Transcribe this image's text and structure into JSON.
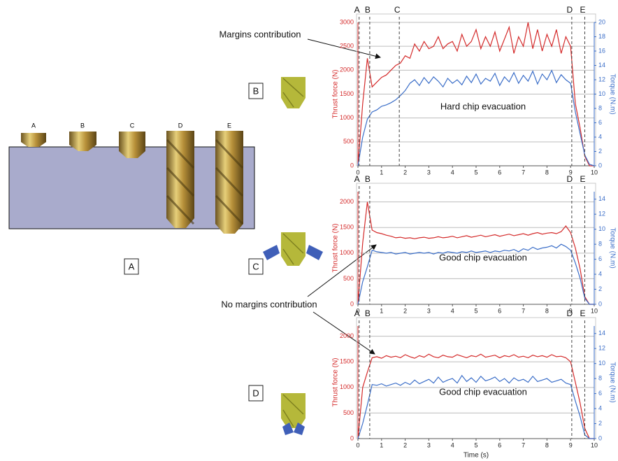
{
  "chart_data": [
    {
      "type": "line",
      "ylabel": "Thrust force (N)",
      "y2label": "Torque (N.m)",
      "annotation": "Hard chip evacuation",
      "xlim": [
        0,
        10
      ],
      "xticks": [
        0,
        1,
        2,
        3,
        4,
        5,
        6,
        7,
        8,
        9,
        10
      ],
      "ylim": [
        0,
        3000
      ],
      "yticks": [
        0,
        500,
        1000,
        1500,
        2000,
        2500,
        3000
      ],
      "y2lim": [
        0,
        20
      ],
      "y2ticks": [
        0,
        2,
        4,
        6,
        8,
        10,
        12,
        14,
        16,
        18,
        20
      ],
      "grid": true,
      "markers": [
        {
          "label": "A",
          "x": 0.05
        },
        {
          "label": "B",
          "x": 0.5
        },
        {
          "label": "C",
          "x": 1.75
        },
        {
          "label": "D",
          "x": 9.05
        },
        {
          "label": "E",
          "x": 9.6
        }
      ],
      "x": [
        0,
        0.2,
        0.4,
        0.6,
        0.8,
        1,
        1.2,
        1.4,
        1.6,
        1.8,
        2,
        2.2,
        2.4,
        2.6,
        2.8,
        3,
        3.2,
        3.4,
        3.6,
        3.8,
        4,
        4.2,
        4.4,
        4.6,
        4.8,
        5,
        5.2,
        5.4,
        5.6,
        5.8,
        6,
        6.2,
        6.4,
        6.6,
        6.8,
        7,
        7.2,
        7.4,
        7.6,
        7.8,
        8,
        8.2,
        8.4,
        8.6,
        8.8,
        9,
        9.2,
        9.4,
        9.6,
        9.8,
        10
      ],
      "series": [
        {
          "color": "#d42a2a",
          "values": [
            0,
            1300,
            2250,
            1650,
            1750,
            1850,
            1900,
            2000,
            2100,
            2150,
            2300,
            2250,
            2550,
            2400,
            2600,
            2450,
            2500,
            2700,
            2450,
            2550,
            2600,
            2400,
            2750,
            2500,
            2600,
            2850,
            2450,
            2700,
            2500,
            2800,
            2400,
            2650,
            2900,
            2350,
            2700,
            2500,
            3000,
            2450,
            2850,
            2400,
            2750,
            2500,
            2850,
            2350,
            2700,
            2500,
            1300,
            800,
            200,
            0,
            0
          ]
        },
        {
          "color": "#3b6ec8",
          "axis": "y2",
          "values": [
            0,
            4,
            6.5,
            7.5,
            7.8,
            8.3,
            8.5,
            8.8,
            9.2,
            9.8,
            10.5,
            11.5,
            12,
            11.2,
            12.3,
            11.5,
            12.4,
            11.8,
            11,
            12.2,
            11.5,
            12,
            11.3,
            12.5,
            11.6,
            12.8,
            11.4,
            12.2,
            11.8,
            12.9,
            11.2,
            12.4,
            11.7,
            13,
            11.5,
            12.6,
            11.8,
            13.2,
            11.4,
            12.8,
            12,
            13.3,
            11.6,
            12.7,
            12,
            11.5,
            7.5,
            4.5,
            1.5,
            0.2,
            0
          ]
        }
      ]
    },
    {
      "type": "line",
      "ylabel": "Thrust force (N)",
      "y2label": "Torque (N.m)",
      "annotation": "Good chip evacuation",
      "xlim": [
        0,
        10
      ],
      "xticks": [
        0,
        1,
        2,
        3,
        4,
        5,
        6,
        7,
        8,
        9,
        10
      ],
      "ylim": [
        0,
        2200
      ],
      "yticks": [
        0,
        500,
        1000,
        1500,
        2000
      ],
      "y2lim": [
        0,
        15
      ],
      "y2ticks": [
        0,
        2,
        4,
        6,
        8,
        10,
        12,
        14
      ],
      "grid": true,
      "markers": [
        {
          "label": "A",
          "x": 0.05
        },
        {
          "label": "B",
          "x": 0.5
        },
        {
          "label": "D",
          "x": 9.05
        },
        {
          "label": "E",
          "x": 9.6
        }
      ],
      "x": [
        0,
        0.2,
        0.4,
        0.6,
        0.8,
        1,
        1.2,
        1.4,
        1.6,
        1.8,
        2,
        2.2,
        2.4,
        2.6,
        2.8,
        3,
        3.2,
        3.4,
        3.6,
        3.8,
        4,
        4.2,
        4.4,
        4.6,
        4.8,
        5,
        5.2,
        5.4,
        5.6,
        5.8,
        6,
        6.2,
        6.4,
        6.6,
        6.8,
        7,
        7.2,
        7.4,
        7.6,
        7.8,
        8,
        8.2,
        8.4,
        8.6,
        8.8,
        9,
        9.2,
        9.4,
        9.6,
        9.8,
        10
      ],
      "series": [
        {
          "color": "#d42a2a",
          "values": [
            0,
            1200,
            2000,
            1450,
            1400,
            1380,
            1350,
            1330,
            1300,
            1310,
            1290,
            1300,
            1280,
            1300,
            1310,
            1290,
            1300,
            1320,
            1300,
            1310,
            1330,
            1300,
            1320,
            1340,
            1310,
            1330,
            1350,
            1320,
            1340,
            1360,
            1330,
            1350,
            1370,
            1340,
            1360,
            1380,
            1350,
            1380,
            1400,
            1370,
            1390,
            1400,
            1380,
            1420,
            1530,
            1400,
            1100,
            700,
            150,
            0,
            0
          ]
        },
        {
          "color": "#3b6ec8",
          "axis": "y2",
          "values": [
            0,
            3,
            5,
            7.2,
            7,
            6.9,
            6.8,
            6.9,
            6.7,
            6.8,
            6.9,
            6.7,
            6.8,
            6.9,
            6.8,
            6.9,
            6.7,
            6.9,
            6.8,
            7,
            6.9,
            6.8,
            7,
            6.9,
            7.1,
            6.9,
            7,
            7.1,
            6.9,
            7.1,
            7,
            7.2,
            7.1,
            7.3,
            7,
            7.4,
            7.2,
            7.6,
            7.3,
            7.5,
            7.6,
            7.8,
            7.5,
            8,
            7.7,
            7.2,
            5.5,
            3.5,
            0.8,
            0,
            0
          ]
        }
      ]
    },
    {
      "type": "line",
      "ylabel": "Thrust force (N)",
      "y2label": "Torque (N.m)",
      "xlabel": "Time (s)",
      "annotation": "Good chip evacuation",
      "xlim": [
        0,
        10
      ],
      "xticks": [
        0,
        1,
        2,
        3,
        4,
        5,
        6,
        7,
        8,
        9,
        10
      ],
      "ylim": [
        0,
        2200
      ],
      "yticks": [
        0,
        500,
        1000,
        1500,
        2000
      ],
      "y2lim": [
        0,
        15
      ],
      "y2ticks": [
        0,
        2,
        4,
        6,
        8,
        10,
        12,
        14
      ],
      "grid": true,
      "markers": [
        {
          "label": "A",
          "x": 0.05
        },
        {
          "label": "B",
          "x": 0.5
        },
        {
          "label": "D",
          "x": 9.05
        },
        {
          "label": "E",
          "x": 9.6
        }
      ],
      "x": [
        0,
        0.2,
        0.4,
        0.6,
        0.8,
        1,
        1.2,
        1.4,
        1.6,
        1.8,
        2,
        2.2,
        2.4,
        2.6,
        2.8,
        3,
        3.2,
        3.4,
        3.6,
        3.8,
        4,
        4.2,
        4.4,
        4.6,
        4.8,
        5,
        5.2,
        5.4,
        5.6,
        5.8,
        6,
        6.2,
        6.4,
        6.6,
        6.8,
        7,
        7.2,
        7.4,
        7.6,
        7.8,
        8,
        8.2,
        8.4,
        8.6,
        8.8,
        9,
        9.2,
        9.4,
        9.6,
        9.8,
        10
      ],
      "series": [
        {
          "color": "#d42a2a",
          "values": [
            0,
            1000,
            1300,
            1580,
            1600,
            1570,
            1620,
            1590,
            1610,
            1580,
            1640,
            1600,
            1570,
            1620,
            1590,
            1650,
            1600,
            1580,
            1630,
            1600,
            1590,
            1640,
            1610,
            1580,
            1620,
            1600,
            1650,
            1590,
            1610,
            1630,
            1580,
            1620,
            1600,
            1640,
            1590,
            1610,
            1580,
            1630,
            1600,
            1620,
            1590,
            1640,
            1600,
            1610,
            1580,
            1500,
            1100,
            700,
            200,
            0,
            0
          ]
        },
        {
          "color": "#3b6ec8",
          "axis": "y2",
          "values": [
            0,
            2,
            4.5,
            7.2,
            7.1,
            7.3,
            7,
            7.2,
            7.4,
            7.1,
            7.5,
            7.2,
            7.8,
            7.3,
            7.6,
            7.9,
            7.4,
            8.2,
            7.5,
            7.8,
            8,
            7.4,
            8.4,
            7.6,
            8.1,
            7.5,
            8.3,
            7.7,
            7.9,
            8.2,
            7.6,
            8,
            7.4,
            8.1,
            7.7,
            7.9,
            7.5,
            8.3,
            7.6,
            7.8,
            8,
            7.5,
            7.7,
            7.9,
            7.4,
            7.2,
            5,
            3,
            0.5,
            0,
            0
          ]
        }
      ]
    }
  ],
  "annotations": {
    "margins": "Margins contribution",
    "no_margins": "No margins contribution"
  },
  "drill_labels": [
    "A",
    "B",
    "C",
    "D",
    "E"
  ],
  "panel_labels": [
    "A",
    "B",
    "C",
    "D"
  ]
}
